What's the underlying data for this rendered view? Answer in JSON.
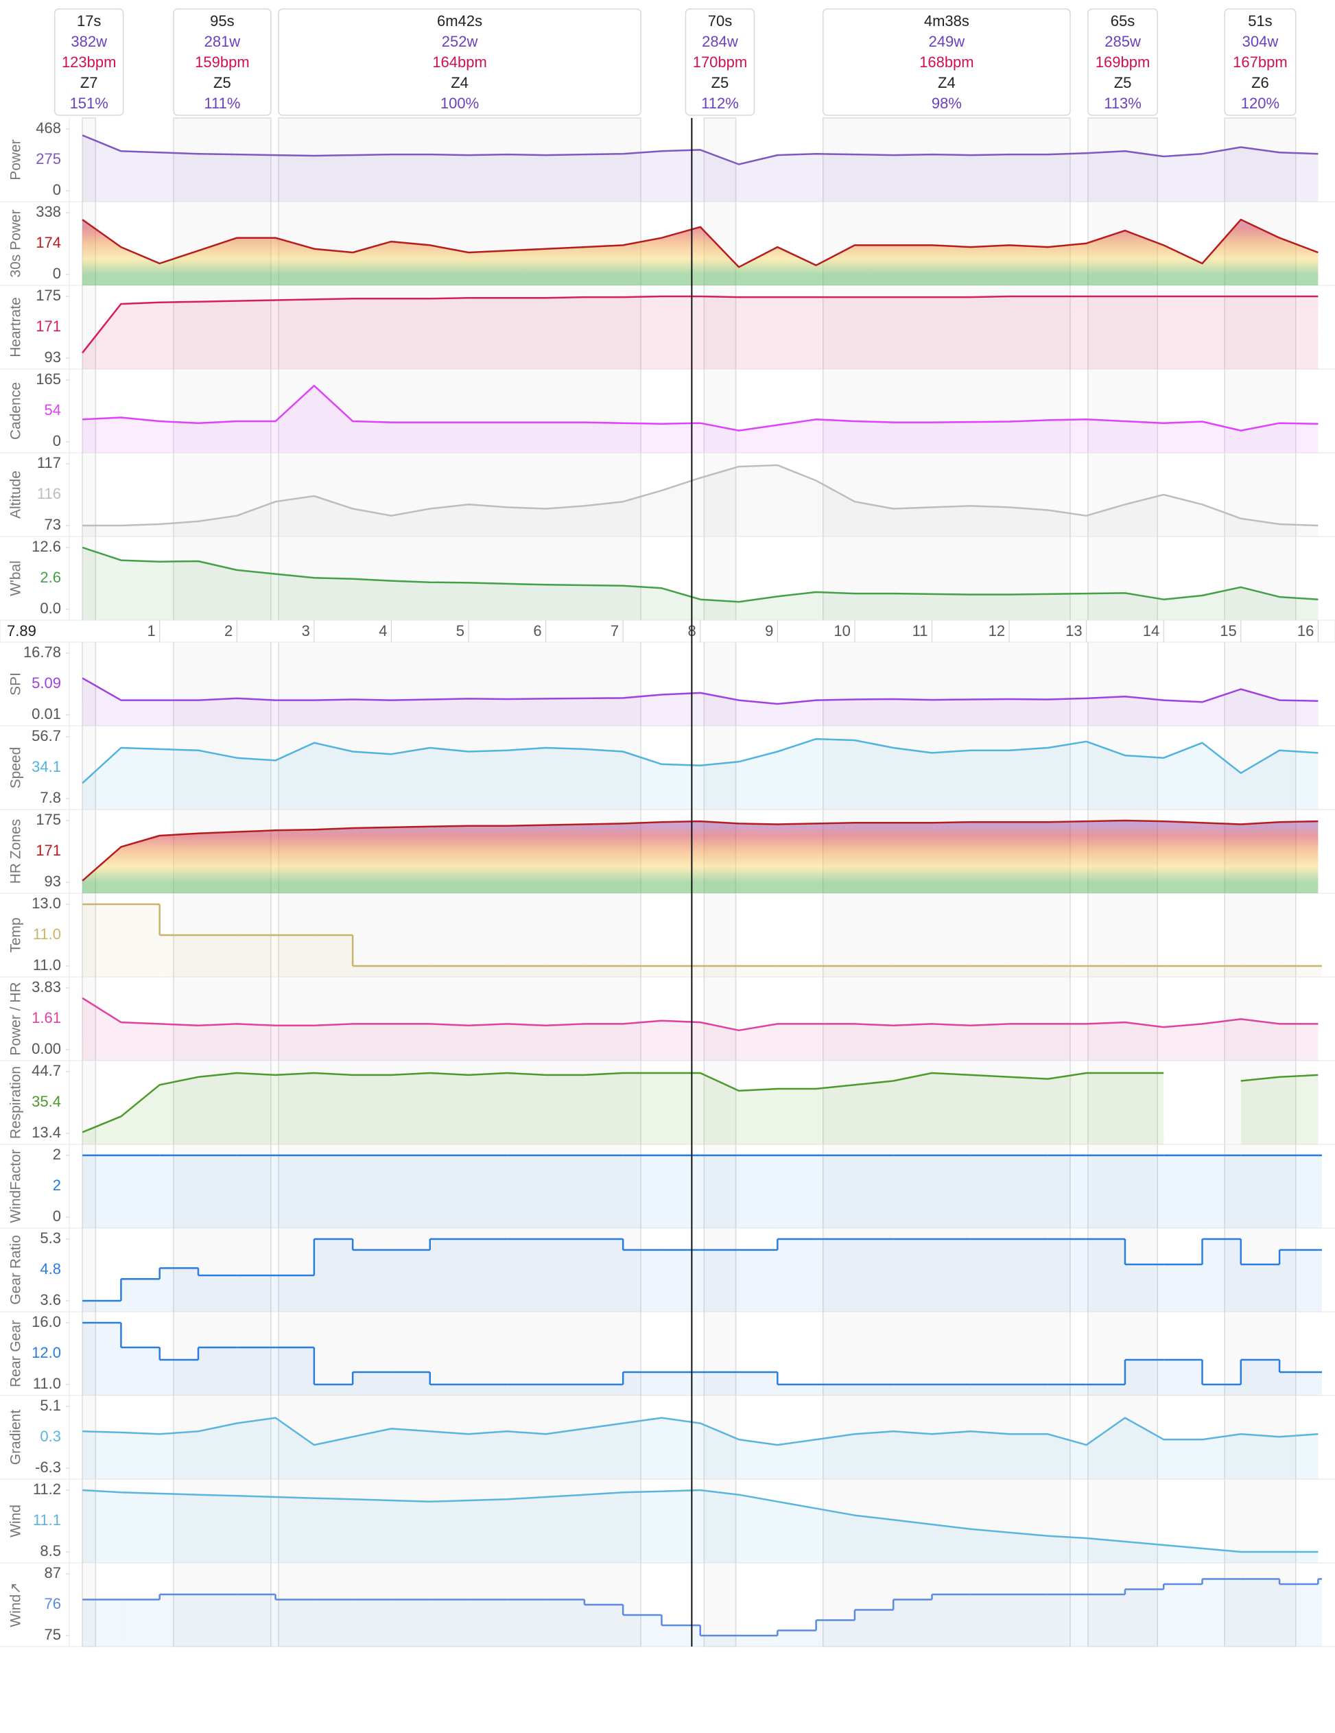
{
  "chart_data": {
    "type": "line",
    "xlim": [
      -0.17,
      16.05
    ],
    "xticks": [
      1,
      2,
      3,
      4,
      5,
      6,
      7,
      8,
      9,
      10,
      11,
      12,
      13,
      14,
      15,
      16
    ],
    "cursor": 7.89,
    "x": [
      0,
      0.5,
      1,
      1.5,
      2,
      2.5,
      3,
      3.5,
      4,
      4.5,
      5,
      5.5,
      6,
      6.5,
      7,
      7.5,
      8,
      8.5,
      9,
      9.5,
      10,
      10.5,
      11,
      11.5,
      12,
      12.5,
      13,
      13.5,
      14,
      14.5,
      15,
      15.5,
      16
    ],
    "intervals": [
      {
        "duration": "17s",
        "power": "382w",
        "heartrate": "123bpm",
        "zone": "Z7",
        "percent": "151%",
        "start": 0,
        "end": 0.17
      },
      {
        "duration": "95s",
        "power": "281w",
        "heartrate": "159bpm",
        "zone": "Z5",
        "percent": "111%",
        "start": 1.18,
        "end": 2.44
      },
      {
        "duration": "6m42s",
        "power": "252w",
        "heartrate": "164bpm",
        "zone": "Z4",
        "percent": "100%",
        "start": 2.54,
        "end": 7.23
      },
      {
        "duration": "70s",
        "power": "284w",
        "heartrate": "170bpm",
        "zone": "Z5",
        "percent": "112%",
        "start": 8.05,
        "end": 8.46
      },
      {
        "duration": "4m38s",
        "power": "249w",
        "heartrate": "168bpm",
        "zone": "Z4",
        "percent": "98%",
        "start": 9.59,
        "end": 12.79
      },
      {
        "duration": "65s",
        "power": "285w",
        "heartrate": "169bpm",
        "zone": "Z5",
        "percent": "113%",
        "start": 13.02,
        "end": 13.92
      },
      {
        "duration": "51s",
        "power": "304w",
        "heartrate": "167bpm",
        "zone": "Z6",
        "percent": "120%",
        "start": 14.79,
        "end": 15.71
      }
    ],
    "zone_colors": [
      "#7b3fc4",
      "#d0202a",
      "#f08a30",
      "#f7d560",
      "#4caf50"
    ],
    "panels": [
      {
        "label": "Power",
        "color": "#7e57c2",
        "ylim": [
          0,
          468
        ],
        "yticks": [
          0,
          468
        ],
        "cursor_value": 275,
        "values": [
          420,
          300,
          290,
          280,
          275,
          270,
          265,
          270,
          275,
          275,
          270,
          275,
          270,
          275,
          280,
          300,
          310,
          200,
          270,
          280,
          275,
          270,
          275,
          270,
          275,
          275,
          285,
          300,
          260,
          280,
          330,
          290,
          280
        ]
      },
      {
        "label": "30s Power",
        "color": "#b71c1c",
        "zones": true,
        "ylim": [
          0,
          338
        ],
        "yticks": [
          0,
          338
        ],
        "cursor_value": 174,
        "values": [
          300,
          150,
          60,
          130,
          200,
          200,
          140,
          120,
          180,
          160,
          120,
          130,
          140,
          150,
          160,
          200,
          260,
          40,
          150,
          50,
          160,
          160,
          160,
          150,
          160,
          150,
          170,
          240,
          160,
          60,
          300,
          200,
          120
        ]
      },
      {
        "label": "Heartrate",
        "color": "#d81b60",
        "ylim": [
          93,
          175
        ],
        "yticks": [
          93,
          175
        ],
        "cursor_value": 171,
        "values": [
          100,
          165,
          167,
          168,
          169,
          170,
          171,
          172,
          172,
          172,
          173,
          173,
          173,
          174,
          174,
          175,
          175,
          174,
          174,
          174,
          174,
          174,
          174,
          174,
          175,
          175,
          175,
          175,
          175,
          175,
          175,
          175,
          175
        ]
      },
      {
        "label": "Cadence",
        "color": "#e040fb",
        "ylim": [
          0,
          165
        ],
        "yticks": [
          0,
          165
        ],
        "cursor_value": 54,
        "values": [
          60,
          65,
          55,
          50,
          55,
          55,
          150,
          55,
          52,
          52,
          52,
          52,
          52,
          52,
          50,
          48,
          50,
          30,
          45,
          60,
          55,
          52,
          52,
          53,
          54,
          58,
          60,
          55,
          50,
          54,
          30,
          50,
          48
        ]
      },
      {
        "label": "Altitude",
        "color": "#bdbdbd",
        "ylim": [
          73,
          117
        ],
        "yticks": [
          73,
          117
        ],
        "cursor_value": 116,
        "values": [
          73,
          73,
          74,
          76,
          80,
          90,
          94,
          85,
          80,
          85,
          88,
          86,
          85,
          87,
          90,
          98,
          107,
          115,
          116,
          105,
          90,
          85,
          86,
          87,
          86,
          84,
          80,
          88,
          95,
          88,
          78,
          74,
          73
        ]
      },
      {
        "label": "W'bal",
        "color": "#43a047",
        "ylim": [
          0,
          12.6
        ],
        "yticks": [
          {
            "value": 0,
            "label": "0.0"
          },
          12.6
        ],
        "cursor_value": 2.6,
        "values": [
          12.6,
          10,
          9.7,
          9.8,
          8,
          7.2,
          6.4,
          6.2,
          5.8,
          5.5,
          5.4,
          5.2,
          5,
          4.9,
          4.8,
          4.3,
          2,
          1.5,
          2.6,
          3.5,
          3.2,
          3.2,
          3.1,
          3,
          3,
          3.1,
          3.2,
          3.3,
          2,
          2.8,
          4.5,
          2.5,
          2
        ]
      },
      {
        "label": "SPI",
        "color": "#a040e0",
        "ylim": [
          0.01,
          16.78
        ],
        "yticks": [
          0.01,
          16.78
        ],
        "cursor_value": 5.09,
        "values": [
          10,
          4,
          4,
          4,
          4.5,
          4,
          4,
          4.2,
          4,
          4.2,
          4.4,
          4.3,
          4.4,
          4.5,
          4.6,
          5.5,
          6,
          4,
          3,
          4,
          4.2,
          4.3,
          4.1,
          4.2,
          4.3,
          4.2,
          4.5,
          5,
          4,
          3.5,
          7,
          4,
          3.8
        ]
      },
      {
        "label": "Speed",
        "color": "#4fb3e0",
        "ylim": [
          7.8,
          56.7
        ],
        "yticks": [
          7.8,
          56.7
        ],
        "cursor_value": 34.1,
        "values": [
          20,
          48,
          47,
          46,
          40,
          38,
          52,
          45,
          43,
          48,
          45,
          46,
          48,
          47,
          45,
          35,
          34,
          37,
          45,
          55,
          54,
          48,
          44,
          46,
          46,
          48,
          53,
          42,
          40,
          52,
          28,
          46,
          44
        ]
      },
      {
        "label": "HR Zones",
        "color": "#b71c1c",
        "zones": true,
        "ylim": [
          93,
          175
        ],
        "yticks": [
          93,
          175
        ],
        "cursor_value": 171,
        "values": [
          95,
          140,
          155,
          158,
          160,
          162,
          163,
          165,
          166,
          167,
          168,
          168,
          169,
          170,
          171,
          173,
          174,
          171,
          170,
          171,
          172,
          172,
          172,
          173,
          173,
          173,
          174,
          175,
          174,
          172,
          170,
          173,
          174
        ]
      },
      {
        "label": "Temp",
        "color": "#c8b46a",
        "step": true,
        "ylim": [
          11,
          13
        ],
        "yticks": [
          {
            "value": 11,
            "label": "11.0"
          },
          {
            "value": 13,
            "label": "13.0"
          }
        ],
        "cursor_value": 11,
        "cursor_label": "11.0",
        "values": [
          13,
          13,
          12,
          12,
          12,
          12,
          12,
          11,
          11,
          11,
          11,
          11,
          11,
          11,
          11,
          11,
          11,
          11,
          11,
          11,
          11,
          11,
          11,
          11,
          11,
          11,
          11,
          11,
          11,
          11,
          11,
          11,
          11
        ]
      },
      {
        "label": "Power / HR",
        "color": "#e040a0",
        "ylim": [
          0,
          3.83
        ],
        "yticks": [
          {
            "value": 0,
            "label": "0.00"
          },
          3.83
        ],
        "cursor_value": 1.61,
        "values": [
          3.2,
          1.7,
          1.6,
          1.5,
          1.6,
          1.5,
          1.5,
          1.6,
          1.6,
          1.6,
          1.5,
          1.6,
          1.5,
          1.6,
          1.6,
          1.8,
          1.7,
          1.2,
          1.6,
          1.6,
          1.6,
          1.5,
          1.6,
          1.5,
          1.6,
          1.6,
          1.6,
          1.7,
          1.4,
          1.6,
          1.9,
          1.6,
          1.6
        ]
      },
      {
        "label": "Respiration",
        "color": "#4c9a2a",
        "ylim": [
          13.4,
          44.7
        ],
        "yticks": [
          13.4,
          44.7
        ],
        "cursor_value": 35.4,
        "values": [
          14,
          22,
          38,
          42,
          44,
          43,
          44,
          43,
          43,
          44,
          43,
          44,
          43,
          43,
          44,
          44,
          44,
          35,
          36,
          36,
          38,
          40,
          44,
          43,
          42,
          41,
          44,
          44,
          44,
          null,
          40,
          42,
          43
        ]
      },
      {
        "label": "WindFactor",
        "color": "#1e7be0",
        "step": true,
        "ylim": [
          0,
          2
        ],
        "yticks": [
          0,
          2
        ],
        "cursor_value": 2,
        "values": [
          2,
          2,
          2,
          2,
          2,
          2,
          2,
          2,
          2,
          2,
          2,
          2,
          2,
          2,
          2,
          2,
          2,
          2,
          2,
          2,
          2,
          2,
          2,
          2,
          2,
          2,
          2,
          2,
          2,
          2,
          2,
          2,
          2
        ]
      },
      {
        "label": "Gear Ratio",
        "color": "#2a7de0",
        "step": true,
        "ylim": [
          3.6,
          5.3
        ],
        "yticks": [
          3.6,
          5.3
        ],
        "cursor_value": 4.8,
        "values": [
          3.6,
          4.2,
          4.5,
          4.3,
          4.3,
          4.3,
          5.3,
          5,
          5,
          5.3,
          5.3,
          5.3,
          5.3,
          5.3,
          5,
          5,
          5,
          5,
          5.3,
          5.3,
          5.3,
          5.3,
          5.3,
          5.3,
          5.3,
          5.3,
          5.3,
          4.6,
          4.6,
          5.3,
          4.6,
          5,
          5
        ]
      },
      {
        "label": "Rear Gear",
        "color": "#2a7de0",
        "step": true,
        "ylim": [
          11,
          16
        ],
        "yticks": [
          {
            "value": 11,
            "label": "11.0"
          },
          {
            "value": 16,
            "label": "16.0"
          }
        ],
        "cursor_value": 12,
        "cursor_label": "12.0",
        "values": [
          16,
          14,
          13,
          14,
          14,
          14,
          11,
          12,
          12,
          11,
          11,
          11,
          11,
          11,
          12,
          12,
          12,
          12,
          11,
          11,
          11,
          11,
          11,
          11,
          11,
          11,
          11,
          13,
          13,
          11,
          13,
          12,
          12
        ]
      },
      {
        "label": "Gradient",
        "color": "#5ab4e0",
        "ylim": [
          -6.3,
          5.1
        ],
        "yticks": [
          -6.3,
          5.1
        ],
        "cursor_value": 0.3,
        "values": [
          0.5,
          0.3,
          0,
          0.5,
          2,
          3,
          -2,
          -0.5,
          1,
          0.5,
          0,
          0.5,
          0,
          1,
          2,
          3,
          2,
          -1,
          -2,
          -1,
          0,
          0.5,
          0,
          0.5,
          0,
          0,
          -2,
          3,
          -1,
          -1,
          0,
          -0.5,
          0
        ]
      },
      {
        "label": "Wind",
        "color": "#5ab4e0",
        "ylim": [
          8.5,
          11.2
        ],
        "yticks": [
          8.5,
          11.2
        ],
        "cursor_value": 11.1,
        "values": [
          11.2,
          11.1,
          11.05,
          11,
          10.95,
          10.9,
          10.85,
          10.8,
          10.75,
          10.7,
          10.75,
          10.8,
          10.9,
          11,
          11.1,
          11.15,
          11.2,
          11,
          10.7,
          10.4,
          10.1,
          9.9,
          9.7,
          9.5,
          9.35,
          9.2,
          9.1,
          8.95,
          8.8,
          8.65,
          8.5,
          8.5,
          8.5
        ]
      },
      {
        "label": "Wind↗",
        "color": "#5a8ae0",
        "step": true,
        "ylim": [
          75,
          87
        ],
        "yticks": [
          75,
          87
        ],
        "cursor_value": 76,
        "values": [
          82,
          82,
          83,
          83,
          83,
          82,
          82,
          82,
          82,
          82,
          82,
          82,
          82,
          81,
          79,
          77,
          75,
          75,
          76,
          78,
          80,
          82,
          83,
          83,
          83,
          83,
          83,
          84,
          85,
          86,
          86,
          85,
          86
        ]
      }
    ]
  }
}
